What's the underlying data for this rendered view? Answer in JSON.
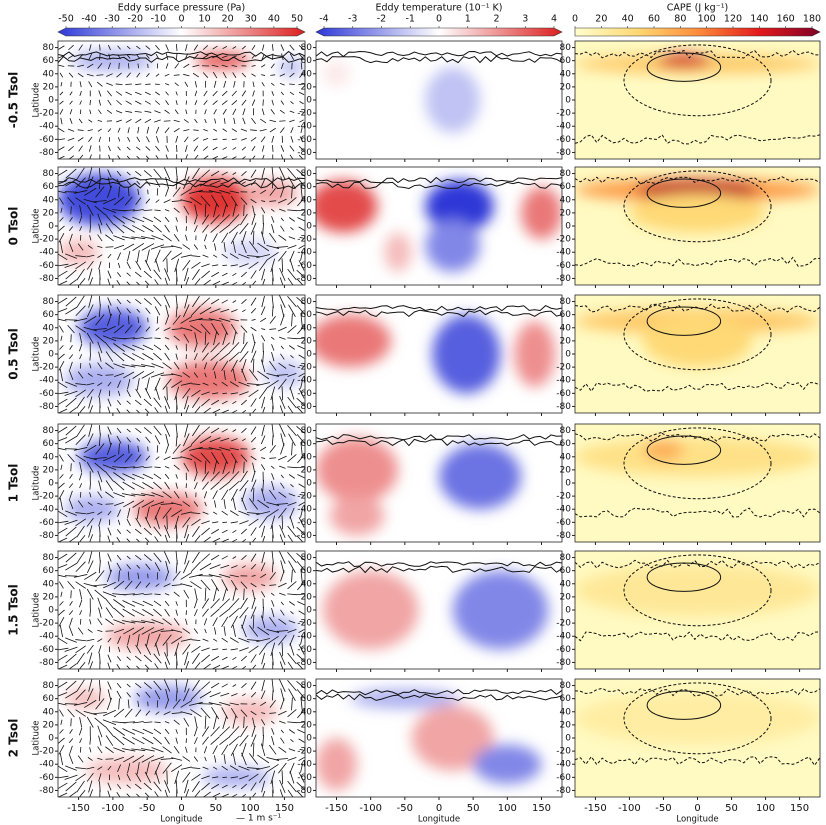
{
  "colorbars": [
    {
      "label": "Eddy surface pressure (Pa)",
      "ticks": [
        -50,
        -40,
        -30,
        -20,
        -10,
        0,
        10,
        20,
        30,
        40,
        50
      ]
    },
    {
      "label": "Eddy temperature (10⁻¹ K)",
      "ticks": [
        -4,
        -3,
        -2,
        -1,
        0,
        1,
        2,
        3,
        4
      ]
    },
    {
      "label": "CAPE (J kg⁻¹)",
      "ticks": [
        0,
        20,
        40,
        60,
        80,
        100,
        120,
        140,
        160,
        180
      ]
    }
  ],
  "rows": [
    "-0.5 Tsol",
    "0 Tsol",
    "0.5 Tsol",
    "1 Tsol",
    "1.5 Tsol",
    "2 Tsol"
  ],
  "y_axis": {
    "label": "Latitude",
    "ticks": [
      80,
      60,
      40,
      20,
      0,
      -20,
      -40,
      -60,
      -80
    ]
  },
  "x_axis": {
    "label": "Longitude",
    "ticks": [
      -150,
      -100,
      -50,
      0,
      50,
      100,
      150
    ]
  },
  "vector_key": "— 1 m s⁻¹"
}
